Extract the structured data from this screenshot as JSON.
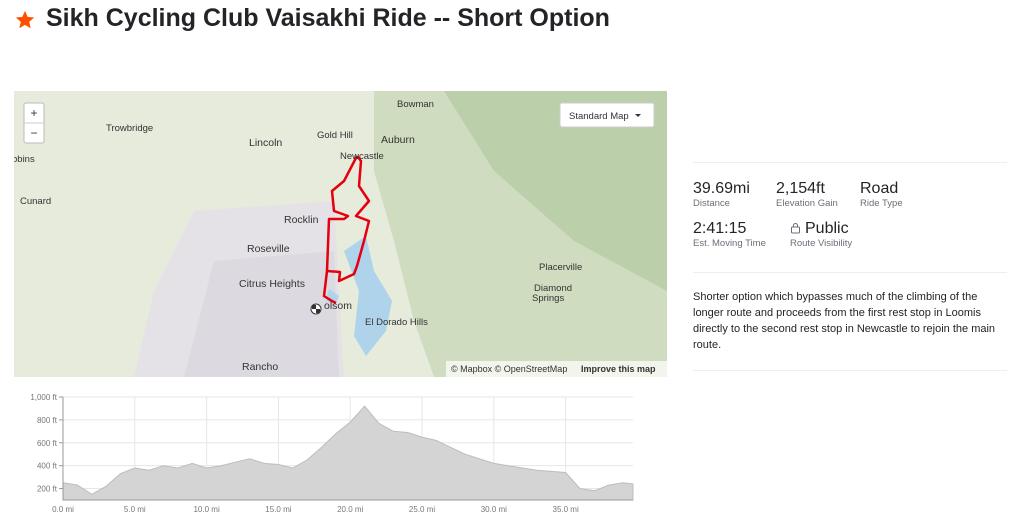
{
  "header": {
    "title": "Sikh Cycling Club Vaisakhi Ride -- Short Option"
  },
  "map": {
    "zoom_in": "+",
    "zoom_out": "−",
    "style_select": "Standard Map",
    "labels": [
      "Bowman",
      "Trowbridge",
      "Gold Hill",
      "Auburn",
      "Lincoln",
      "Newcastle",
      "bbins",
      "Cunard",
      "Rocklin",
      "Roseville",
      "Citrus Heights",
      "Placerville",
      "Diamond",
      "Springs",
      "olsom",
      "El Dorado Hills",
      "Rancho"
    ],
    "attribution": "© Mapbox © OpenStreetMap",
    "improve_link": "Improve this map"
  },
  "elevation_chart": {
    "type": "area",
    "color": "#d4d4d4",
    "x": [
      0,
      1,
      2,
      3,
      4,
      5,
      6,
      7,
      8,
      9,
      10,
      11,
      12,
      13,
      14,
      15,
      16,
      17,
      18,
      19,
      20,
      21,
      22,
      23,
      24,
      25,
      26,
      27,
      28,
      29,
      30,
      31,
      32,
      33,
      34,
      35,
      36,
      37,
      38,
      39,
      39.69
    ],
    "values": [
      250,
      230,
      150,
      220,
      330,
      380,
      360,
      400,
      380,
      420,
      380,
      400,
      430,
      460,
      420,
      410,
      380,
      450,
      560,
      680,
      780,
      920,
      770,
      700,
      690,
      650,
      620,
      560,
      500,
      460,
      420,
      400,
      380,
      360,
      350,
      340,
      200,
      180,
      230,
      250,
      240
    ],
    "xlim": [
      0,
      39.69
    ],
    "ylim": [
      100,
      1000
    ],
    "xticks": [
      {
        "value": 0,
        "label": "0.0 mi"
      },
      {
        "value": 5,
        "label": "5.0 mi"
      },
      {
        "value": 10,
        "label": "10.0 mi"
      },
      {
        "value": 15,
        "label": "15.0 mi"
      },
      {
        "value": 20,
        "label": "20.0 mi"
      },
      {
        "value": 25,
        "label": "25.0 mi"
      },
      {
        "value": 30,
        "label": "30.0 mi"
      },
      {
        "value": 35,
        "label": "35.0 mi"
      }
    ],
    "yticks": [
      {
        "value": 200,
        "label": "200 ft"
      },
      {
        "value": 400,
        "label": "400 ft"
      },
      {
        "value": 600,
        "label": "600 ft"
      },
      {
        "value": 800,
        "label": "800 ft"
      },
      {
        "value": 1000,
        "label": "1,000 ft"
      }
    ],
    "grid": true
  },
  "stats": [
    {
      "value": "39.69mi",
      "label": "Distance"
    },
    {
      "value": "2,154ft",
      "label": "Elevation Gain"
    },
    {
      "value": "Road",
      "label": "Ride Type"
    },
    {
      "value": "2:41:15",
      "label": "Est. Moving Time"
    },
    {
      "value": "Public",
      "label": "Route Visibility"
    }
  ],
  "description": "Shorter option which bypasses much of the climbing of the longer route and proceeds from the first rest stop in Loomis directly to the second rest stop in Newcastle to rejoin the main route."
}
